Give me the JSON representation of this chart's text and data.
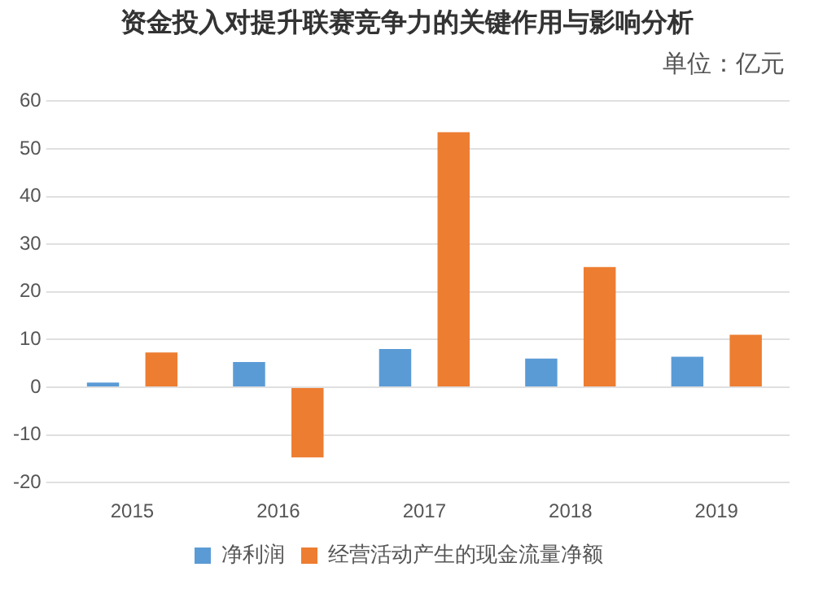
{
  "chart_data": {
    "type": "bar",
    "title": "资金投入对提升联赛竞争力的关键作用与影响分析",
    "annotations": [
      "单位：亿元"
    ],
    "categories": [
      "2015",
      "2016",
      "2017",
      "2018",
      "2019"
    ],
    "series": [
      {
        "name": "净利润",
        "color": "#5b9bd5",
        "values": [
          1,
          5.3,
          8,
          6,
          6.4
        ]
      },
      {
        "name": "经营活动产生的现金流量净额",
        "color": "#ed7d31",
        "values": [
          7.3,
          -14.7,
          53.5,
          25.2,
          11
        ]
      }
    ],
    "ylim": [
      -20,
      60
    ],
    "yticks": [
      -20,
      -10,
      0,
      10,
      20,
      30,
      40,
      50,
      60
    ],
    "grid": "y",
    "legend": "bottom"
  }
}
